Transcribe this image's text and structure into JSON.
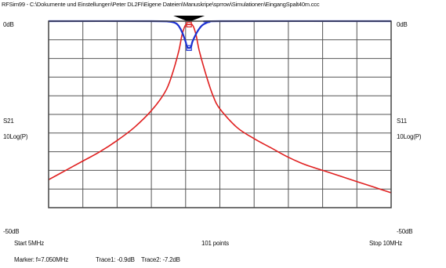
{
  "window": {
    "title": "RFSim99 - C:\\Dokumente und Einstellungen\\Peter DL2FI\\Eigene Dateien\\Manuskripe\\sprrow\\Simulationen\\EingangSpalt40m.ccc"
  },
  "colors": {
    "s21": "#e02020",
    "s11": "#1a2fd0",
    "grid": "#555555",
    "frame": "#444444",
    "marker": "#000000"
  },
  "chart_data": {
    "type": "line",
    "title": "",
    "xlabel": "",
    "x_unit": "MHz",
    "xlim": [
      5,
      10
    ],
    "y_left": {
      "top": "0dB",
      "mid_label": "S21",
      "mid_sublabel": "10Log(P)",
      "bottom": "-50dB"
    },
    "y_right": {
      "top": "0dB",
      "mid_label": "S11",
      "mid_sublabel": "10Log(P)",
      "bottom": "-50dB"
    },
    "ylim": [
      -50,
      0
    ],
    "grid": true,
    "footer": {
      "start": "Start 5MHz",
      "points": "101 points",
      "stop": "Stop 10MHz"
    },
    "marker": {
      "text": "Marker: f=7.050MHz",
      "x": 7.05,
      "trace1": "Trace1: -0.9dB",
      "trace2": "Trace2: -7.2dB"
    },
    "series": [
      {
        "name": "S21",
        "color": "#e02020",
        "x": [
          5.0,
          5.25,
          5.5,
          5.75,
          6.0,
          6.25,
          6.5,
          6.7,
          6.8,
          6.9,
          6.95,
          7.0,
          7.05,
          7.1,
          7.15,
          7.2,
          7.3,
          7.4,
          7.5,
          7.75,
          8.0,
          8.25,
          8.5,
          8.75,
          9.0,
          9.25,
          9.5,
          9.75,
          10.0
        ],
        "values": [
          -42.5,
          -40.0,
          -37.5,
          -35.0,
          -32.0,
          -28.5,
          -24.0,
          -19.0,
          -14.5,
          -8.0,
          -3.5,
          -1.0,
          -0.9,
          -1.0,
          -3.5,
          -8.0,
          -14.5,
          -20.0,
          -23.5,
          -28.5,
          -31.5,
          -34.0,
          -36.5,
          -38.5,
          -40.0,
          -41.5,
          -43.0,
          -44.5,
          -46.0
        ]
      },
      {
        "name": "S11",
        "color": "#1a2fd0",
        "x": [
          5.0,
          6.5,
          6.75,
          6.85,
          6.9,
          6.95,
          7.0,
          7.02,
          7.05,
          7.08,
          7.1,
          7.15,
          7.2,
          7.25,
          7.3,
          7.35,
          7.5,
          10.0
        ],
        "values": [
          0.0,
          0.0,
          -0.1,
          -0.5,
          -1.3,
          -3.0,
          -5.5,
          -6.8,
          -7.2,
          -6.8,
          -5.5,
          -3.5,
          -2.0,
          -1.0,
          -0.5,
          -0.2,
          0.0,
          0.0
        ]
      }
    ]
  }
}
